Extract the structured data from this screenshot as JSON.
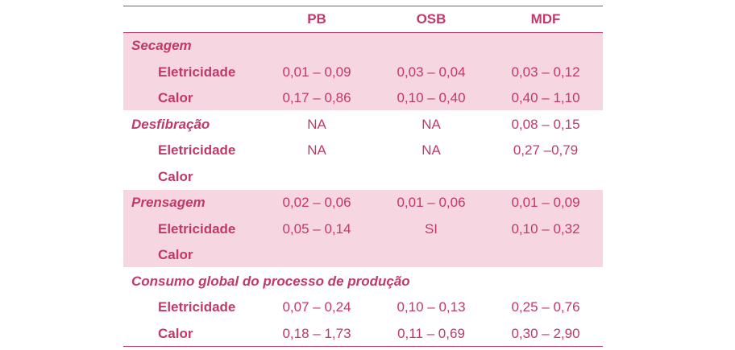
{
  "table": {
    "header": [
      "PB",
      "OSB",
      "MDF"
    ],
    "groups": [
      {
        "title": "Secagem",
        "shaded": true,
        "cells": null,
        "rows": [
          {
            "label": "Eletricidade",
            "cells": [
              "0,01 – 0,09",
              "0,03 – 0,04",
              "0,03 – 0,12"
            ]
          },
          {
            "label": "Calor",
            "cells": [
              "0,17 – 0,86",
              "0,10 – 0,40",
              "0,40 – 1,10"
            ]
          }
        ]
      },
      {
        "title": "Desfibração",
        "shaded": false,
        "cells": [
          "NA",
          "NA",
          "0,08 – 0,15"
        ],
        "rows": [
          {
            "label": "Eletricidade",
            "cells": [
              "NA",
              "NA",
              "0,27 –0,79"
            ]
          },
          {
            "label": "Calor",
            "cells": null
          }
        ]
      },
      {
        "title": "Prensagem",
        "shaded": true,
        "cells": [
          "0,02 – 0,06",
          "0,01 – 0,06",
          "0,01 – 0,09"
        ],
        "rows": [
          {
            "label": "Eletricidade",
            "cells": [
              "0,05 – 0,14",
              "SI",
              "0,10 – 0,32"
            ]
          },
          {
            "label": "Calor",
            "cells": null
          }
        ]
      },
      {
        "title": "Consumo global do processo de produção",
        "shaded": false,
        "cells": null,
        "rows": [
          {
            "label": "Eletricidade",
            "cells": [
              "0,07 – 0,24",
              "0,10 – 0,13",
              "0,25 – 0,76"
            ]
          },
          {
            "label": "Calor",
            "cells": [
              "0,18 – 1,73",
              "0,11 – 0,69",
              "0,30 – 2,90"
            ]
          }
        ]
      }
    ]
  }
}
